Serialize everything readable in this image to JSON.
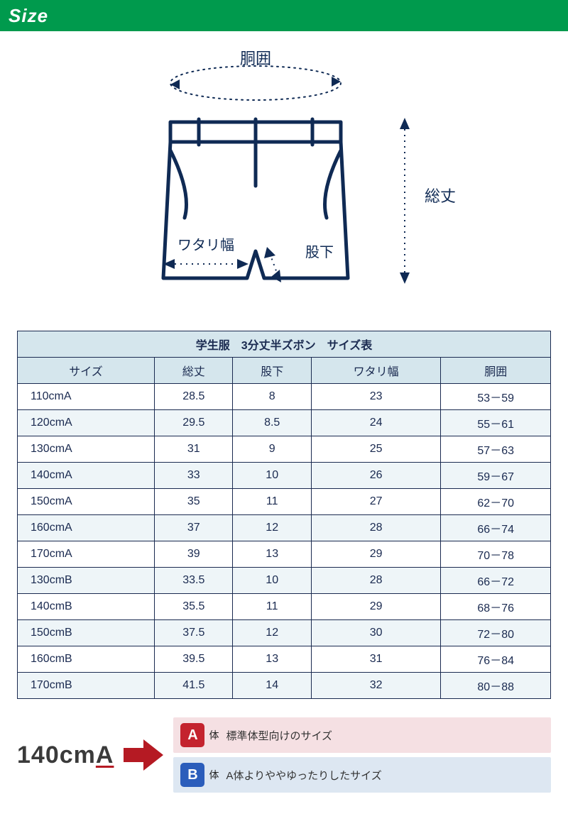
{
  "header": {
    "title": "Size"
  },
  "diagram": {
    "labels": {
      "waist": "胴囲",
      "total_length": "総丈",
      "thigh_width": "ワタリ幅",
      "inseam": "股下"
    },
    "colors": {
      "outline": "#0f2a54",
      "arrow": "#0f2a54",
      "dot": "#0f2a54"
    }
  },
  "table": {
    "title": "学生服　3分丈半ズボン　サイズ表",
    "columns": [
      "サイズ",
      "総丈",
      "股下",
      "ワタリ幅",
      "胴囲"
    ],
    "rows": [
      [
        "110cmA",
        "28.5",
        "8",
        "23",
        "53－59"
      ],
      [
        "120cmA",
        "29.5",
        "8.5",
        "24",
        "55－61"
      ],
      [
        "130cmA",
        "31",
        "9",
        "25",
        "57－63"
      ],
      [
        "140cmA",
        "33",
        "10",
        "26",
        "59－67"
      ],
      [
        "150cmA",
        "35",
        "11",
        "27",
        "62－70"
      ],
      [
        "160cmA",
        "37",
        "12",
        "28",
        "66－74"
      ],
      [
        "170cmA",
        "39",
        "13",
        "29",
        "70－78"
      ],
      [
        "130cmB",
        "33.5",
        "10",
        "28",
        "66－72"
      ],
      [
        "140cmB",
        "35.5",
        "11",
        "29",
        "68－76"
      ],
      [
        "150cmB",
        "37.5",
        "12",
        "30",
        "72－80"
      ],
      [
        "160cmB",
        "39.5",
        "13",
        "31",
        "76－84"
      ],
      [
        "170cmB",
        "41.5",
        "14",
        "32",
        "80－88"
      ]
    ],
    "header_bg": "#d5e6ed",
    "row_alt_bg": "#eef5f8",
    "border_color": "#1a2a50",
    "text_color": "#1a2a50"
  },
  "legend": {
    "example_prefix": "140cm",
    "example_suffix": "A",
    "arrow_color": "#b51a23",
    "a": {
      "badge": "A",
      "suffix": "体",
      "text": "標準体型向けのサイズ",
      "badge_color": "#c4232e",
      "bg": "#f5e0e3"
    },
    "b": {
      "badge": "B",
      "suffix": "体",
      "text": "A体よりややゆったりしたサイズ",
      "badge_color": "#2b5dbb",
      "bg": "#dde7f2"
    }
  }
}
